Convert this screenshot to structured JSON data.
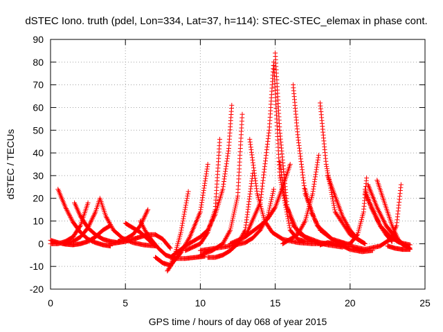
{
  "chart_data": {
    "type": "scatter",
    "title": "dSTEC Iono. truth (pdel, Lon=334, Lat=37, h=114): STEC-STEC_elemax in phase cont.",
    "xlabel": "GPS time / hours of day 068 of year 2015",
    "ylabel": "dSTEC  / TECUs",
    "xlim": [
      0,
      25
    ],
    "ylim": [
      -20,
      90
    ],
    "x_ticks": [
      "0",
      "5",
      "10",
      "15",
      "20",
      "25"
    ],
    "y_ticks": [
      "-20",
      "-10",
      "0",
      "10",
      "20",
      "30",
      "40",
      "50",
      "60",
      "70",
      "80",
      "90"
    ],
    "grid": true,
    "marker": "+",
    "color": "#ff0000",
    "series": [
      {
        "x": [
          0.0,
          0.5,
          1.0,
          1.5,
          2.0,
          2.5,
          3.0,
          3.5,
          4.0
        ],
        "y": [
          1.5,
          0.5,
          -0.2,
          -0.5,
          0.0,
          1.0,
          3.0,
          6.0,
          8.0
        ]
      },
      {
        "x": [
          0.5,
          1.0,
          1.5,
          2.0,
          2.5,
          3.0,
          3.5,
          4.0
        ],
        "y": [
          24.0,
          16.0,
          9.5,
          5.0,
          2.0,
          0.5,
          -0.5,
          -1.0
        ]
      },
      {
        "x": [
          0.0,
          0.5,
          1.0,
          1.5,
          2.0,
          2.5
        ],
        "y": [
          0.0,
          0.0,
          1.0,
          3.0,
          8.0,
          18.0
        ]
      },
      {
        "x": [
          1.6,
          2.0,
          2.5,
          3.0,
          3.5,
          4.0,
          4.5
        ],
        "y": [
          18.0,
          12.0,
          7.0,
          4.0,
          2.0,
          1.0,
          0.5
        ]
      },
      {
        "x": [
          0.8,
          1.5,
          2.0,
          2.5,
          3.0,
          3.3
        ],
        "y": [
          0.0,
          1.0,
          3.0,
          7.0,
          14.0,
          20.0
        ]
      },
      {
        "x": [
          3.3,
          3.7,
          4.2,
          4.8,
          5.5,
          6.2,
          7.0
        ],
        "y": [
          20.0,
          12.0,
          6.0,
          2.5,
          0.5,
          -0.5,
          -1.0
        ]
      },
      {
        "x": [
          4.0,
          4.5,
          5.0,
          5.5,
          6.0,
          6.5,
          7.0,
          7.5,
          8.0
        ],
        "y": [
          0.0,
          0.5,
          1.0,
          2.0,
          3.0,
          4.0,
          4.0,
          2.0,
          -2.0
        ]
      },
      {
        "x": [
          5.0,
          5.5,
          6.0,
          6.5,
          7.0
        ],
        "y": [
          9.0,
          7.0,
          5.0,
          2.0,
          -1.0
        ]
      },
      {
        "x": [
          4.5,
          5.0,
          5.5,
          6.0,
          6.5
        ],
        "y": [
          1.0,
          2.0,
          4.0,
          8.0,
          15.0
        ]
      },
      {
        "x": [
          6.0,
          6.3,
          6.7,
          7.2,
          7.7,
          8.3,
          9.0,
          9.7,
          10.3
        ],
        "y": [
          10.0,
          6.0,
          2.0,
          -2.0,
          -5.0,
          -6.5,
          -6.5,
          -6.0,
          -5.5
        ]
      },
      {
        "x": [
          7.0,
          7.5,
          8.0,
          8.3,
          8.7,
          9.2
        ],
        "y": [
          -6.0,
          -8.5,
          -9.5,
          -5.0,
          5.0,
          23.0
        ]
      },
      {
        "x": [
          7.8,
          8.2,
          8.7,
          9.3,
          10.0,
          10.5
        ],
        "y": [
          -12.0,
          -8.0,
          -4.0,
          3.0,
          14.0,
          35.0
        ]
      },
      {
        "x": [
          8.0,
          9.0,
          10.0,
          10.5,
          11.0,
          11.5,
          11.9,
          12.1
        ],
        "y": [
          -6.0,
          -1.0,
          3.0,
          6.0,
          13.0,
          24.0,
          42.0,
          61.0
        ]
      },
      {
        "x": [
          9.0,
          10.0,
          10.5,
          11.0,
          11.3
        ],
        "y": [
          -3.0,
          0.0,
          5.0,
          15.0,
          46.0
        ]
      },
      {
        "x": [
          10.0,
          10.8,
          11.5,
          12.0,
          12.5,
          12.8
        ],
        "y": [
          -5.0,
          -3.0,
          0.0,
          6.0,
          21.0,
          57.0
        ]
      },
      {
        "x": [
          10.5,
          11.0,
          11.5,
          12.0,
          12.5,
          13.0,
          13.5
        ],
        "y": [
          -6.0,
          -6.0,
          -5.0,
          -3.0,
          0.0,
          6.0,
          31.0
        ]
      },
      {
        "x": [
          10.0,
          11.0,
          12.0,
          13.0,
          13.5,
          14.0,
          14.5,
          14.9
        ],
        "y": [
          -3.0,
          -2.0,
          -1.0,
          0.5,
          2.5,
          6.0,
          12.0,
          24.0
        ]
      },
      {
        "x": [
          12.0,
          13.0,
          14.0,
          14.5,
          15.0,
          15.5,
          16.0
        ],
        "y": [
          0.0,
          3.0,
          8.0,
          11.0,
          16.0,
          25.0,
          35.0
        ]
      },
      {
        "x": [
          13.0,
          14.0,
          14.6,
          14.9
        ],
        "y": [
          3.0,
          18.0,
          50.0,
          80.0
        ]
      },
      {
        "x": [
          14.9,
          15.3,
          16.0,
          16.5,
          17.0,
          18.0
        ],
        "y": [
          80.0,
          30.0,
          6.0,
          2.0,
          1.0,
          0.5
        ]
      },
      {
        "x": [
          13.3,
          13.8,
          14.3,
          14.8,
          15.5,
          16.5,
          17.5,
          18.5
        ],
        "y": [
          46.0,
          22.0,
          10.0,
          5.0,
          2.0,
          0.5,
          0.0,
          0.0
        ]
      },
      {
        "x": [
          15.0,
          15.3,
          15.8,
          16.5,
          17.5,
          18.5,
          19.5
        ],
        "y": [
          84.0,
          50.0,
          16.0,
          5.0,
          1.0,
          -0.5,
          -1.5
        ]
      },
      {
        "x": [
          15.3,
          15.7,
          16.2,
          17.0,
          18.0,
          19.0
        ],
        "y": [
          36.0,
          18.0,
          8.0,
          3.0,
          0.5,
          -0.5
        ]
      },
      {
        "x": [
          16.2,
          16.5,
          17.0,
          17.8,
          18.8,
          20.0
        ],
        "y": [
          70.0,
          48.0,
          22.0,
          8.0,
          2.0,
          -0.5
        ]
      },
      {
        "x": [
          17.0,
          17.4,
          18.0,
          19.0,
          20.0
        ],
        "y": [
          24.0,
          14.0,
          6.0,
          1.0,
          -0.5
        ]
      },
      {
        "x": [
          15.5,
          16.5,
          17.0,
          17.5,
          17.9
        ],
        "y": [
          0.0,
          4.0,
          10.0,
          22.0,
          39.0
        ]
      },
      {
        "x": [
          18.0,
          18.4,
          19.0,
          20.0,
          21.0
        ],
        "y": [
          62.0,
          35.0,
          14.0,
          4.0,
          0.0
        ]
      },
      {
        "x": [
          18.0,
          18.5,
          19.0,
          19.5,
          20.0,
          20.8,
          21.5
        ],
        "y": [
          -0.5,
          0.5,
          0.0,
          -1.0,
          -2.5,
          -3.5,
          -3.0
        ]
      },
      {
        "x": [
          18.5,
          19.0,
          19.5,
          20.0,
          20.5,
          21.0
        ],
        "y": [
          30.0,
          21.0,
          12.0,
          6.0,
          2.0,
          0.0
        ]
      },
      {
        "x": [
          19.0,
          20.0,
          20.5,
          20.9,
          21.1
        ],
        "y": [
          -1.0,
          0.0,
          4.0,
          14.0,
          29.0
        ]
      },
      {
        "x": [
          21.0,
          21.4,
          22.0,
          22.7,
          23.3,
          24.0
        ],
        "y": [
          24.0,
          16.0,
          8.0,
          3.0,
          0.5,
          -0.5
        ]
      },
      {
        "x": [
          21.2,
          21.8,
          22.4,
          23.0,
          23.5,
          24.0
        ],
        "y": [
          26.0,
          16.0,
          8.0,
          3.0,
          0.0,
          -2.0
        ]
      },
      {
        "x": [
          21.8,
          22.3,
          22.8,
          23.2,
          23.6,
          24.0
        ],
        "y": [
          28.0,
          18.0,
          8.0,
          2.0,
          -1.0,
          -2.5
        ]
      },
      {
        "x": [
          21.0,
          21.6,
          22.0,
          22.4,
          22.8
        ],
        "y": [
          22.0,
          14.0,
          8.0,
          4.0,
          1.0
        ]
      },
      {
        "x": [
          20.0,
          21.0,
          22.0,
          22.7,
          23.1,
          23.4
        ],
        "y": [
          -1.0,
          -2.5,
          -1.0,
          2.0,
          8.0,
          26.0
        ]
      },
      {
        "x": [
          22.5,
          23.0,
          23.5,
          23.8,
          24.0
        ],
        "y": [
          -1.0,
          -2.0,
          -2.5,
          -2.5,
          -2.5
        ]
      }
    ]
  }
}
